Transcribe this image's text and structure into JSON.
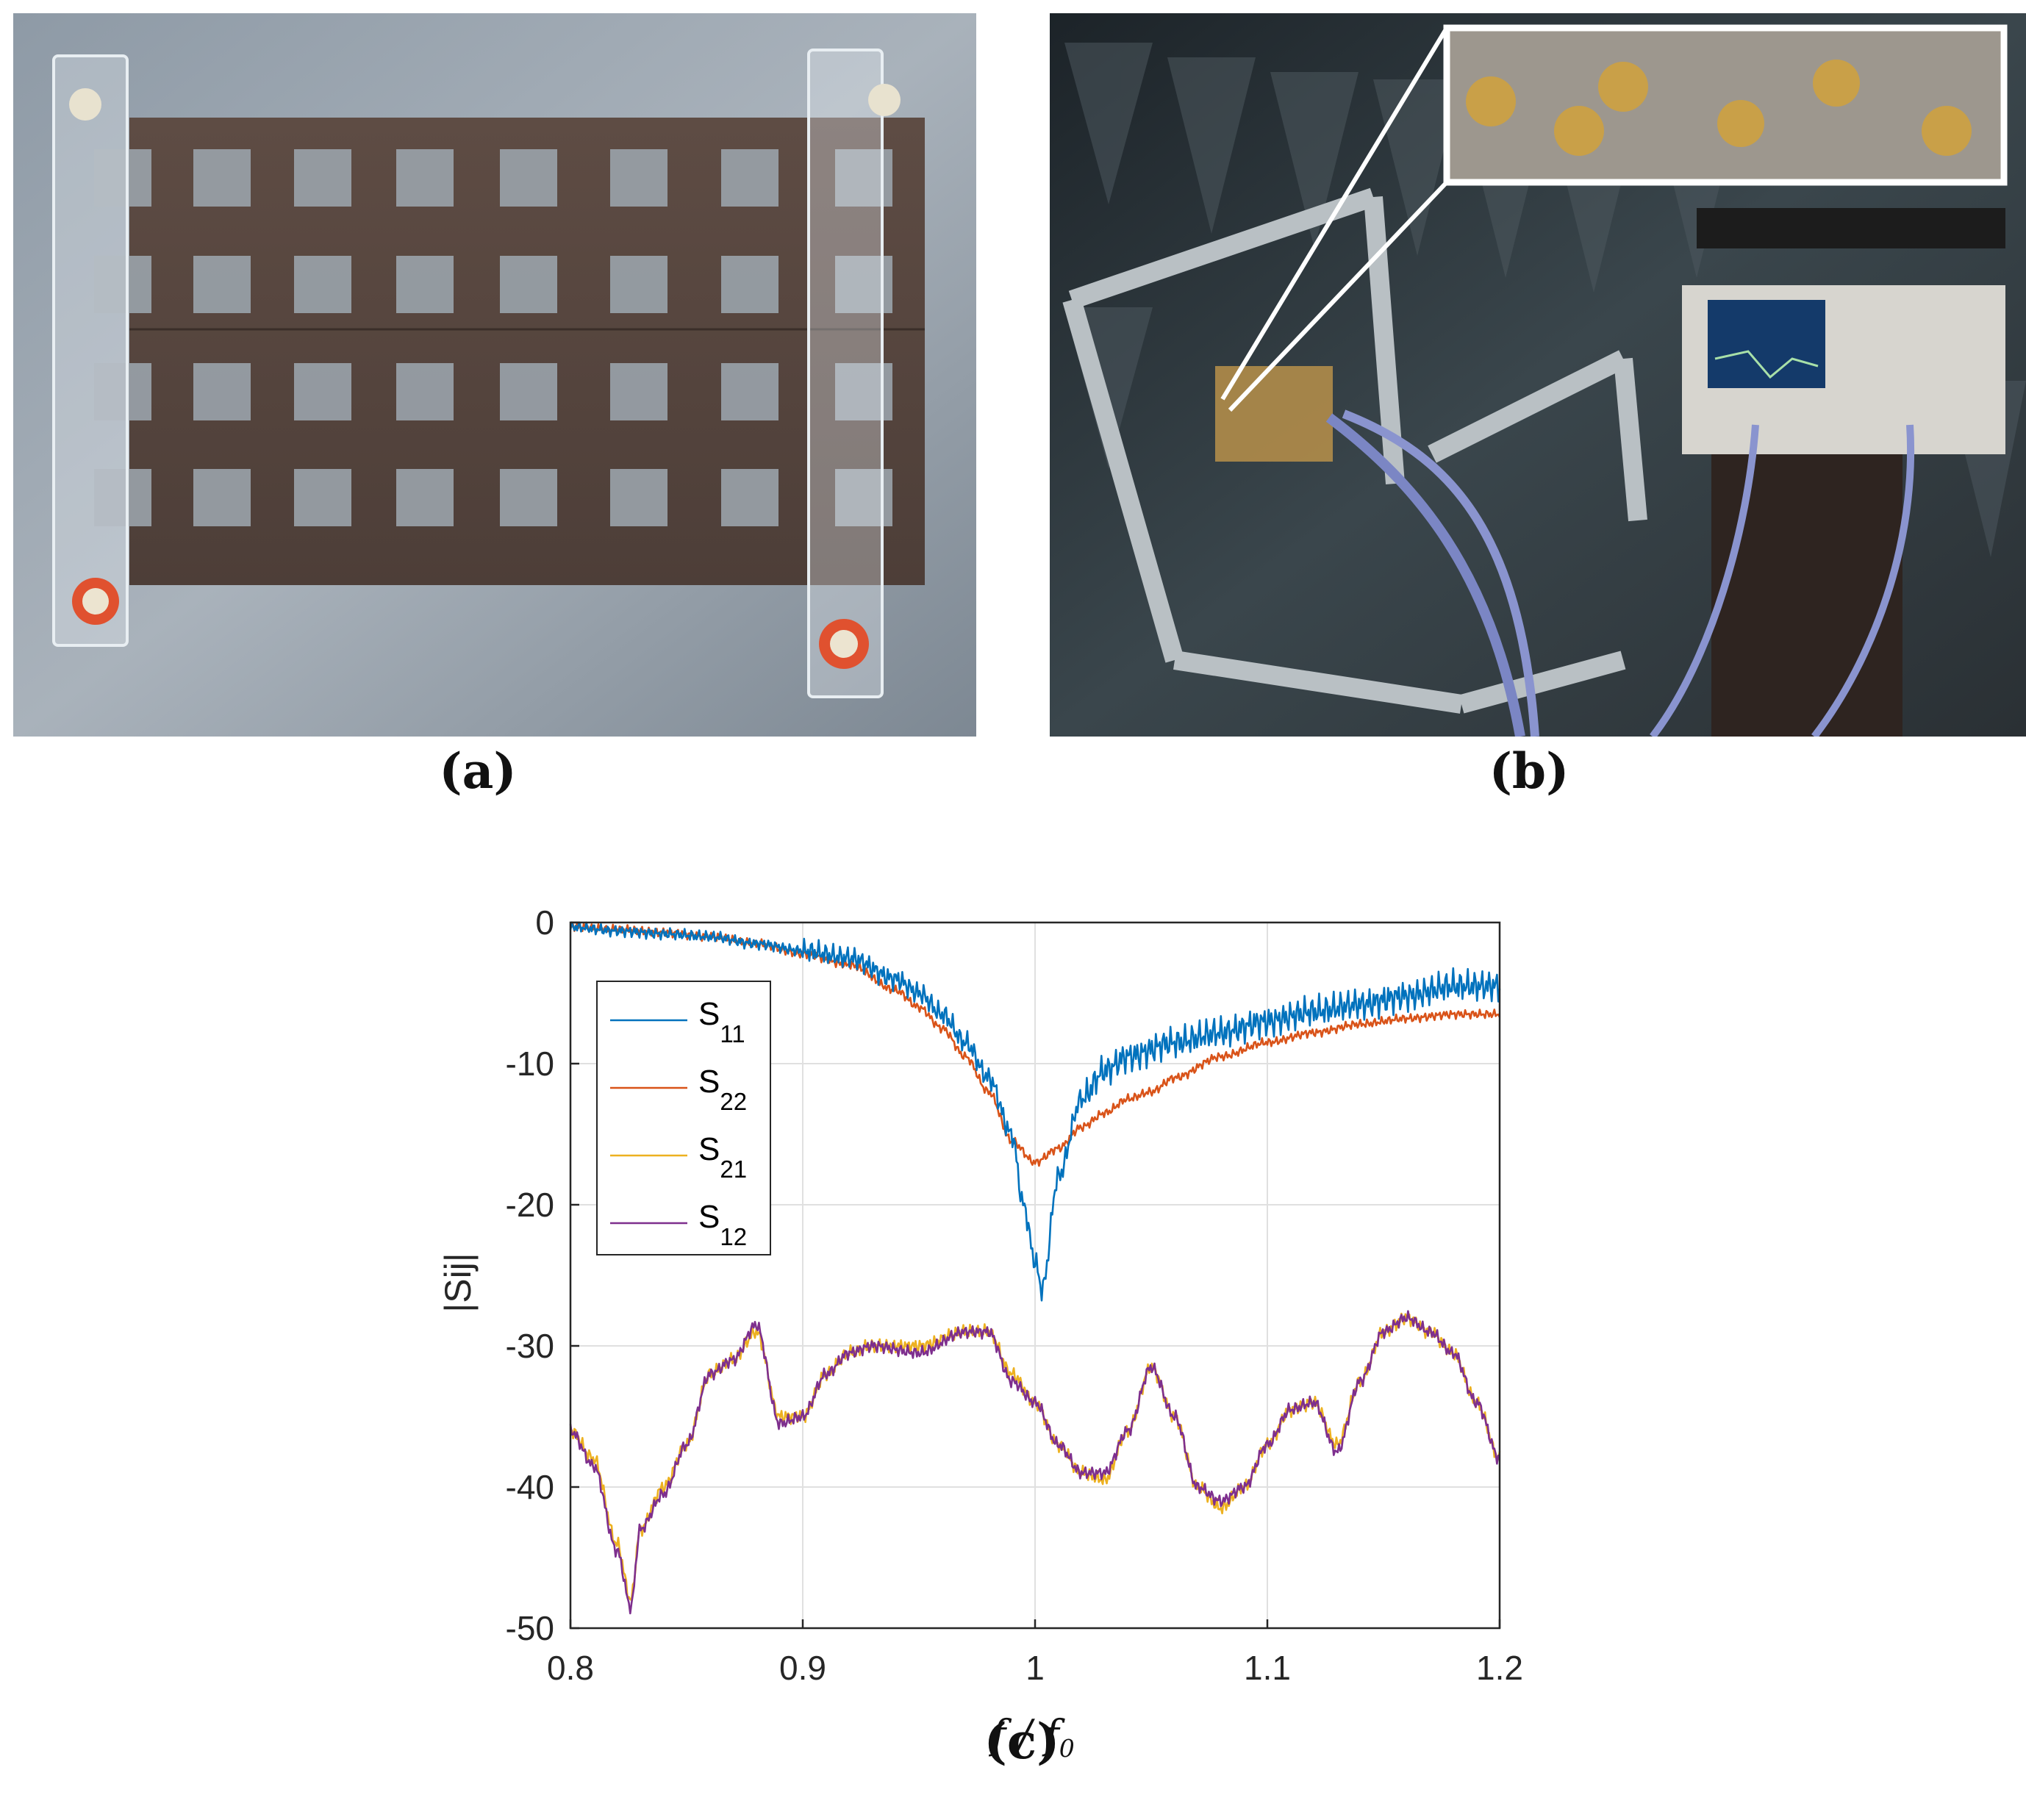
{
  "panels": {
    "a": {
      "label": "(a)"
    },
    "b": {
      "label": "(b)"
    },
    "c": {
      "label": "(c)"
    }
  },
  "colors": {
    "S11": "#0072bd",
    "S22": "#d95319",
    "S21": "#edb120",
    "S12": "#7e2f8e",
    "grid": "#e0e0e0",
    "axis": "#262626"
  },
  "chart_data": {
    "type": "line",
    "xlabel": "f / f0",
    "xlabel_main": "f",
    "xlabel_sep": " / ",
    "xlabel_f0": "f",
    "xlabel_sub": "0",
    "ylabel": "|Sij|",
    "xlim": [
      0.8,
      1.2
    ],
    "ylim": [
      -50,
      0
    ],
    "xticks": [
      "0.8",
      "0.9",
      "1",
      "1.1",
      "1.2"
    ],
    "yticks": [
      "0",
      "-10",
      "-20",
      "-30",
      "-40",
      "-50"
    ],
    "grid": true,
    "legend_position": "top-left",
    "series": [
      {
        "name": "S11",
        "label_main": "S",
        "label_sub": "11",
        "x": [
          0.8,
          0.82,
          0.84,
          0.86,
          0.88,
          0.9,
          0.92,
          0.94,
          0.95,
          0.96,
          0.97,
          0.98,
          0.99,
          0.995,
          1.0,
          1.003,
          1.01,
          1.02,
          1.03,
          1.04,
          1.06,
          1.08,
          1.1,
          1.12,
          1.14,
          1.16,
          1.18,
          1.2
        ],
        "y": [
          -0.3,
          -0.6,
          -0.8,
          -1.0,
          -1.5,
          -2.0,
          -2.5,
          -4.0,
          -5.0,
          -6.5,
          -8.5,
          -11.0,
          -15.0,
          -20.0,
          -24.0,
          -26.0,
          -18.0,
          -12.5,
          -10.5,
          -9.5,
          -8.5,
          -7.8,
          -7.0,
          -6.3,
          -5.8,
          -5.2,
          -4.5,
          -4.5
        ]
      },
      {
        "name": "S22",
        "label_main": "S",
        "label_sub": "22",
        "x": [
          0.8,
          0.82,
          0.84,
          0.86,
          0.88,
          0.9,
          0.92,
          0.94,
          0.95,
          0.96,
          0.97,
          0.98,
          0.99,
          1.0,
          1.01,
          1.02,
          1.03,
          1.04,
          1.05,
          1.06,
          1.08,
          1.1,
          1.12,
          1.14,
          1.16,
          1.18,
          1.2
        ],
        "y": [
          -0.3,
          -0.5,
          -0.7,
          -1.0,
          -1.5,
          -2.2,
          -3.0,
          -4.8,
          -6.0,
          -7.5,
          -9.5,
          -12.0,
          -15.5,
          -17.0,
          -16.0,
          -14.5,
          -13.5,
          -12.5,
          -12.0,
          -11.0,
          -9.5,
          -8.5,
          -7.8,
          -7.2,
          -6.8,
          -6.5,
          -6.5
        ]
      },
      {
        "name": "S21",
        "label_main": "S",
        "label_sub": "21",
        "x": [
          0.8,
          0.81,
          0.82,
          0.826,
          0.83,
          0.84,
          0.85,
          0.86,
          0.87,
          0.88,
          0.89,
          0.9,
          0.91,
          0.92,
          0.93,
          0.95,
          0.97,
          0.98,
          0.99,
          1.0,
          1.01,
          1.02,
          1.03,
          1.04,
          1.05,
          1.06,
          1.07,
          1.08,
          1.09,
          1.1,
          1.11,
          1.12,
          1.13,
          1.14,
          1.15,
          1.16,
          1.17,
          1.18,
          1.19,
          1.2
        ],
        "y": [
          -36,
          -38,
          -44,
          -48,
          -43,
          -40,
          -37,
          -32,
          -31,
          -29,
          -35,
          -35,
          -32,
          -30.5,
          -30,
          -30,
          -29,
          -29,
          -32,
          -34,
          -37,
          -39,
          -39.5,
          -36,
          -31.5,
          -35,
          -40,
          -41.5,
          -40,
          -37,
          -34.5,
          -34,
          -37,
          -32.5,
          -29,
          -28,
          -29,
          -30.5,
          -34,
          -38
        ]
      },
      {
        "name": "S12",
        "label_main": "S",
        "label_sub": "12",
        "x": [
          0.8,
          0.81,
          0.82,
          0.826,
          0.83,
          0.84,
          0.85,
          0.86,
          0.87,
          0.88,
          0.89,
          0.9,
          0.91,
          0.92,
          0.93,
          0.95,
          0.97,
          0.98,
          0.99,
          1.0,
          1.01,
          1.02,
          1.03,
          1.04,
          1.05,
          1.06,
          1.07,
          1.08,
          1.09,
          1.1,
          1.11,
          1.12,
          1.13,
          1.14,
          1.15,
          1.16,
          1.17,
          1.18,
          1.19,
          1.2
        ],
        "y": [
          -36,
          -38.5,
          -44.5,
          -48.5,
          -43,
          -40.5,
          -37,
          -32,
          -31,
          -28.5,
          -35.5,
          -35,
          -32,
          -30.5,
          -30,
          -30.5,
          -29,
          -29,
          -32.5,
          -34,
          -37,
          -39,
          -39,
          -36,
          -31.5,
          -35,
          -40,
          -41,
          -40,
          -37,
          -34.5,
          -34,
          -37.5,
          -32.5,
          -29,
          -28,
          -29,
          -30.5,
          -34,
          -38
        ]
      }
    ]
  }
}
